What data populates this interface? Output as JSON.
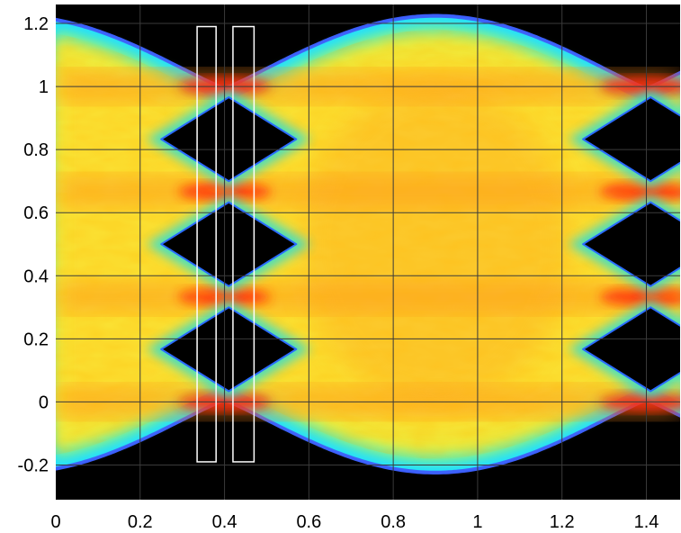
{
  "chart_data": {
    "type": "heatmap",
    "description_kind": "eye-diagram",
    "title": "",
    "xlabel": "",
    "ylabel": "",
    "xlim": [
      0,
      1.48
    ],
    "ylim": [
      -0.31,
      1.26
    ],
    "x_ticks": [
      0,
      0.2,
      0.4,
      0.6,
      0.8,
      1,
      1.2,
      1.4
    ],
    "x_tick_labels": [
      "0",
      "0.2",
      "0.4",
      "0.6",
      "0.8",
      "1",
      "1.2",
      "1.4"
    ],
    "y_ticks": [
      -0.2,
      0,
      0.2,
      0.4,
      0.6,
      0.8,
      1,
      1.2
    ],
    "y_tick_labels": [
      "-0.2",
      "0",
      "0.2",
      "0.4",
      "0.6",
      "0.8",
      "1",
      "1.2"
    ],
    "grid": true,
    "colormap": "jet",
    "background_color": "#000000",
    "grid_color": "#3a3a3a",
    "symbol_levels": [
      0,
      0.333,
      0.667,
      1.0
    ],
    "crossing_times": [
      0.4,
      1.4
    ],
    "eye_centers": [
      0.9
    ],
    "eye_openings": [
      {
        "center_y": 0.167,
        "half_height": 0.133,
        "x_left": 0.25,
        "x_right": 0.57
      },
      {
        "center_y": 0.5,
        "half_height": 0.133,
        "x_left": 0.25,
        "x_right": 0.57
      },
      {
        "center_y": 0.833,
        "half_height": 0.133,
        "x_left": 0.25,
        "x_right": 0.57
      },
      {
        "center_y": 0.167,
        "half_height": 0.133,
        "x_left": 1.25,
        "x_right": 1.57
      },
      {
        "center_y": 0.5,
        "half_height": 0.133,
        "x_left": 1.25,
        "x_right": 1.57
      },
      {
        "center_y": 0.833,
        "half_height": 0.133,
        "x_left": 1.25,
        "x_right": 1.57
      }
    ],
    "envelope": {
      "outer_max": 1.23,
      "outer_min": -0.23,
      "edge_color": "#3a5aff",
      "fringe_color": "#20e0ff"
    },
    "annotations": [
      {
        "type": "rectangle",
        "x0": 0.335,
        "x1": 0.38,
        "y0": -0.19,
        "y1": 1.19,
        "color": "#ffffff"
      },
      {
        "type": "rectangle",
        "x0": 0.42,
        "x1": 0.47,
        "y0": -0.19,
        "y1": 1.19,
        "color": "#ffffff"
      }
    ]
  }
}
